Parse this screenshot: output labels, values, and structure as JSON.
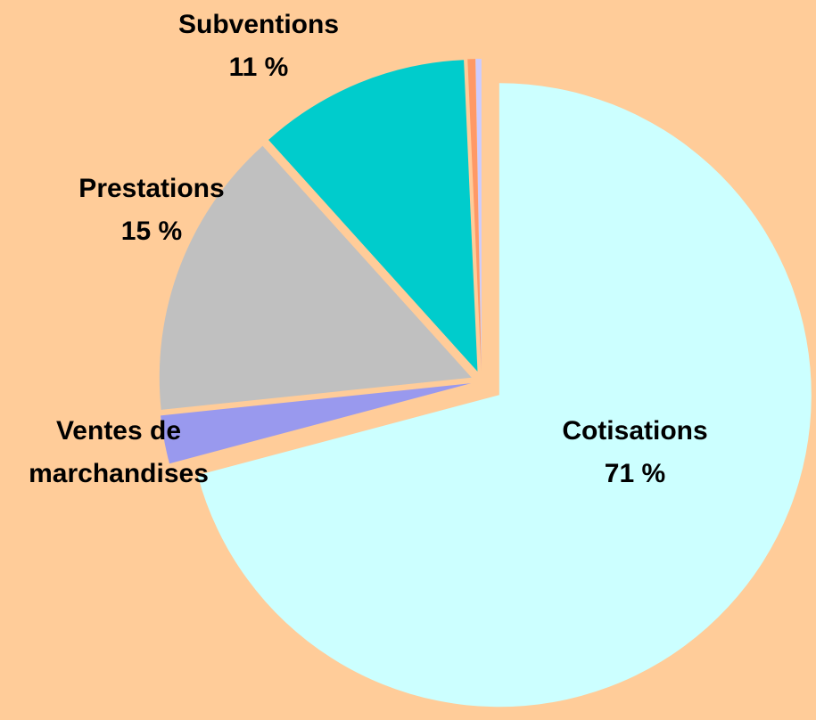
{
  "chart_data": {
    "type": "pie",
    "categories": [
      "Cotisations",
      "Ventes de marchandises",
      "Prestations",
      "Subventions",
      null,
      null
    ],
    "values": [
      71,
      2.5,
      15,
      11,
      0.4,
      0.3
    ],
    "value_labels": [
      "71 %",
      null,
      "15 %",
      "11 %",
      null,
      null
    ],
    "colors": [
      "#ccffff",
      "#9999ee",
      "#c0c0c0",
      "#00cccc",
      "#ff9966",
      "#ccccff"
    ]
  }
}
